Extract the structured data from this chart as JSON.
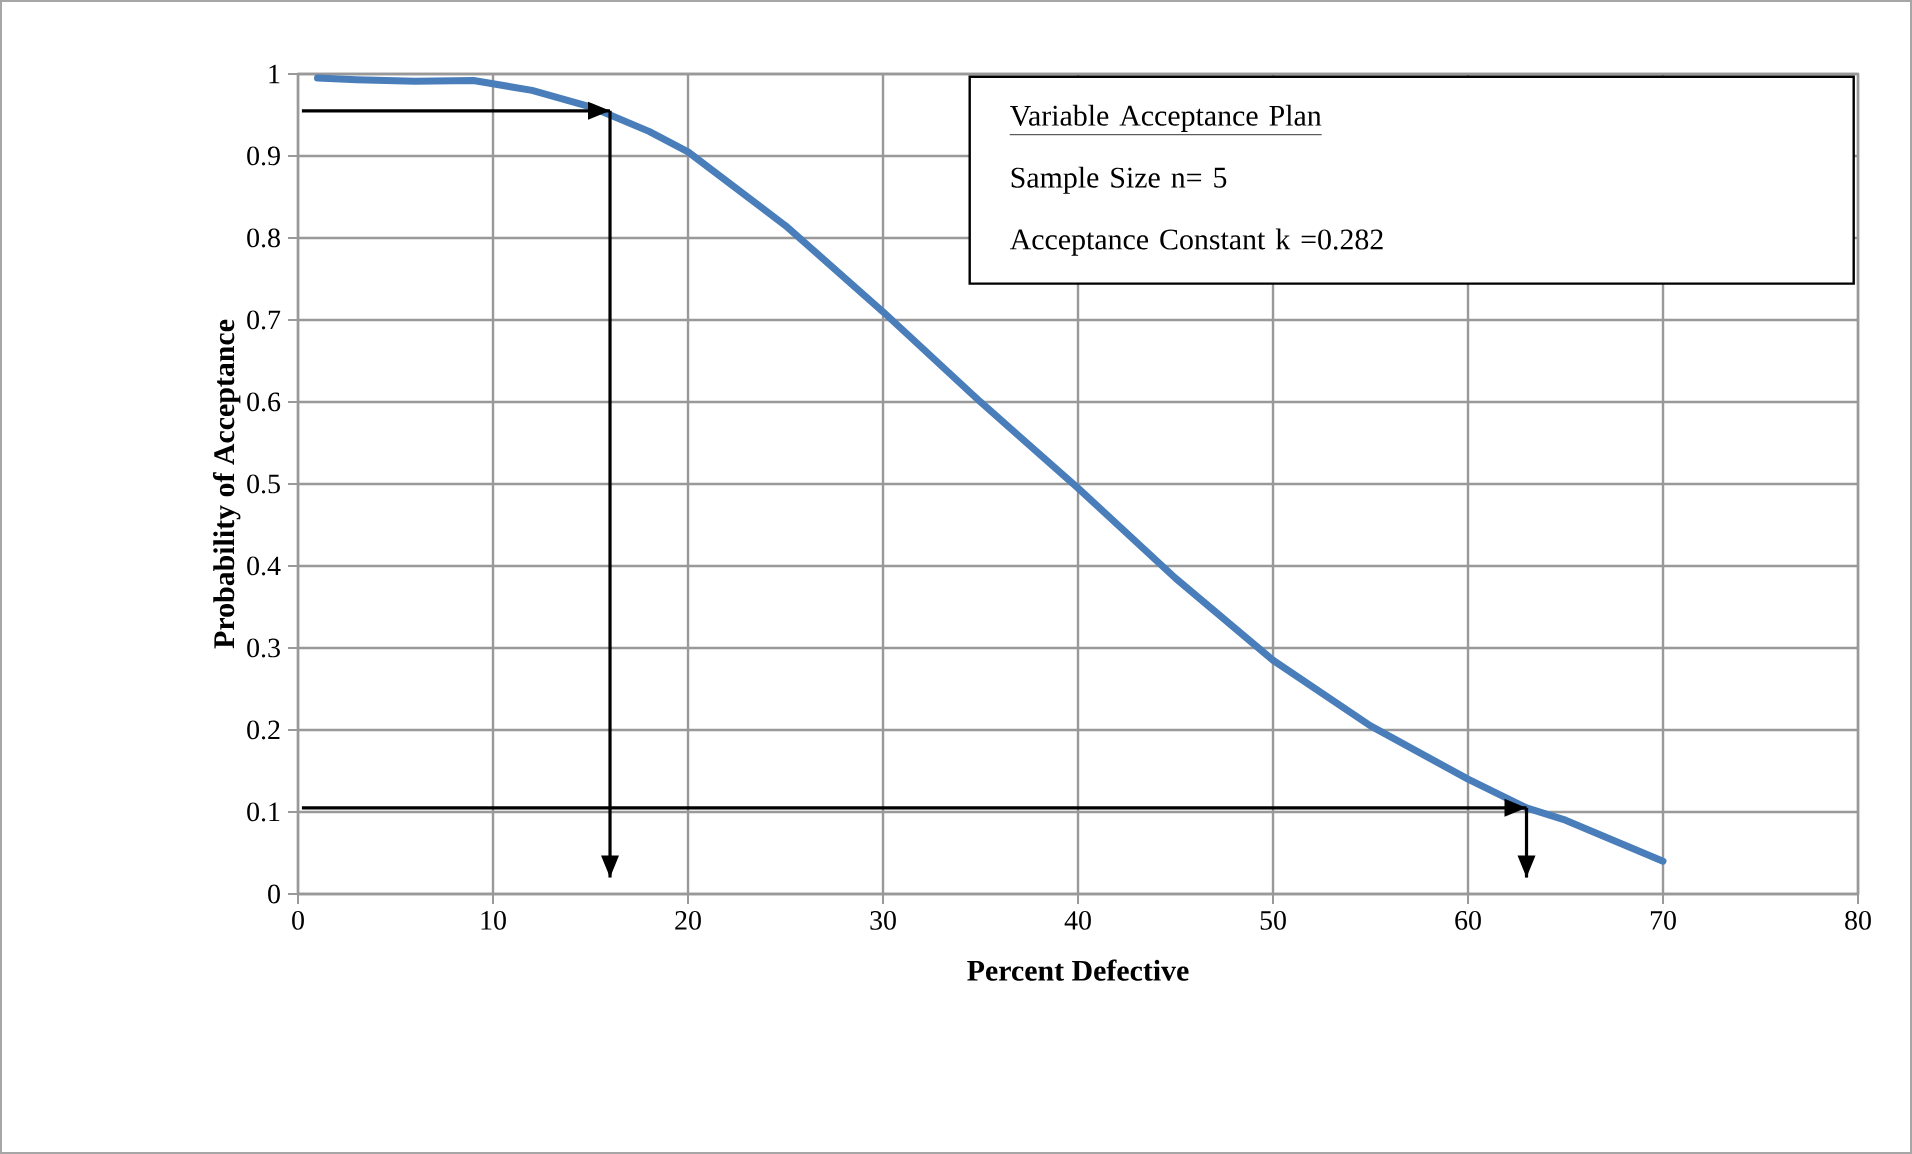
{
  "chart_data": {
    "type": "line",
    "xlabel": "Percent Defective",
    "ylabel": "Probability of Acceptance",
    "xlim": [
      0,
      80
    ],
    "xticks": [
      0,
      10,
      20,
      30,
      40,
      50,
      60,
      70,
      80
    ],
    "ylim": [
      0,
      1
    ],
    "yticks": [
      0,
      0.1,
      0.2,
      0.3,
      0.4,
      0.5,
      0.6,
      0.7,
      0.8,
      0.9,
      1
    ],
    "grid": true,
    "annotations": [
      "Variable Acceptance Plan",
      "Sample Size n= 5",
      "Acceptance Constant k =0.282"
    ],
    "series": [
      {
        "color": "#4a7ebb",
        "x": [
          1,
          3,
          6,
          9,
          12,
          15,
          18,
          20,
          25,
          30,
          35,
          40,
          45,
          50,
          55,
          60,
          63,
          65,
          70
        ],
        "values": [
          0.995,
          0.993,
          0.991,
          0.992,
          0.98,
          0.96,
          0.93,
          0.905,
          0.815,
          0.71,
          0.6,
          0.495,
          0.385,
          0.285,
          0.205,
          0.14,
          0.105,
          0.09,
          0.04
        ]
      },
      {
        "color": "#000000",
        "x": [
          0.2,
          16
        ],
        "values": [
          0.955,
          0.955
        ]
      },
      {
        "color": "#000000",
        "x": [
          16,
          16
        ],
        "values": [
          0.955,
          0.02
        ]
      },
      {
        "color": "#000000",
        "x": [
          0.2,
          63
        ],
        "values": [
          0.105,
          0.105
        ]
      },
      {
        "color": "#000000",
        "x": [
          63,
          63
        ],
        "values": [
          0.105,
          0.02
        ]
      }
    ]
  }
}
